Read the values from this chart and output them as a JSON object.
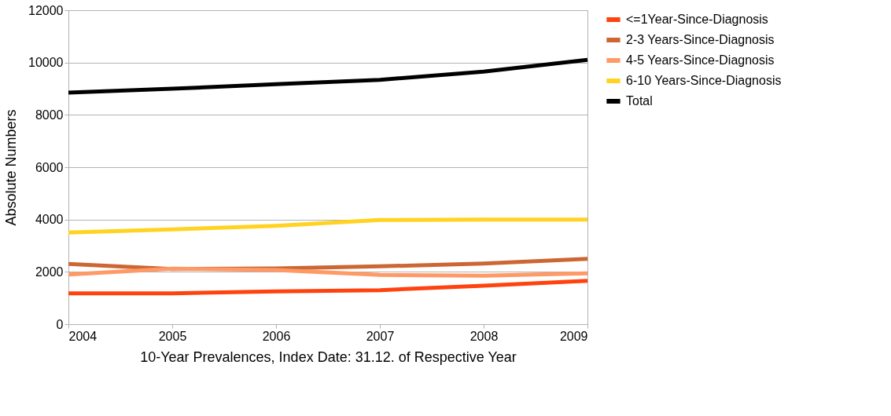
{
  "chart_data": {
    "type": "line",
    "xlabel": "10-Year Prevalences, Index Date: 31.12. of Respective Year",
    "ylabel": "Absolute Numbers",
    "categories": [
      "2004",
      "2005",
      "2006",
      "2007",
      "2008",
      "2009"
    ],
    "series": [
      {
        "name": "<=1Year-Since-Diagnosis",
        "color": "#ff420e",
        "values": [
          1180,
          1180,
          1250,
          1300,
          1470,
          1660
        ]
      },
      {
        "name": "2-3 Years-Since-Diagnosis",
        "color": "#cc6633",
        "values": [
          2300,
          2110,
          2130,
          2210,
          2320,
          2500
        ]
      },
      {
        "name": "4-5 Years-Since-Diagnosis",
        "color": "#ff9966",
        "values": [
          1900,
          2120,
          2070,
          1880,
          1850,
          1940
        ]
      },
      {
        "name": "6-10 Years-Since-Diagnosis",
        "color": "#ffd320",
        "values": [
          3500,
          3620,
          3760,
          3980,
          4000,
          4000
        ]
      },
      {
        "name": "Total",
        "color": "#000000",
        "values": [
          8850,
          9000,
          9170,
          9340,
          9650,
          10100
        ]
      }
    ],
    "ylim": [
      0,
      12000
    ],
    "yticks": [
      0,
      2000,
      4000,
      6000,
      8000,
      10000,
      12000
    ],
    "grid": "y",
    "legend": "right",
    "line_style": "solid",
    "marker": "none"
  }
}
